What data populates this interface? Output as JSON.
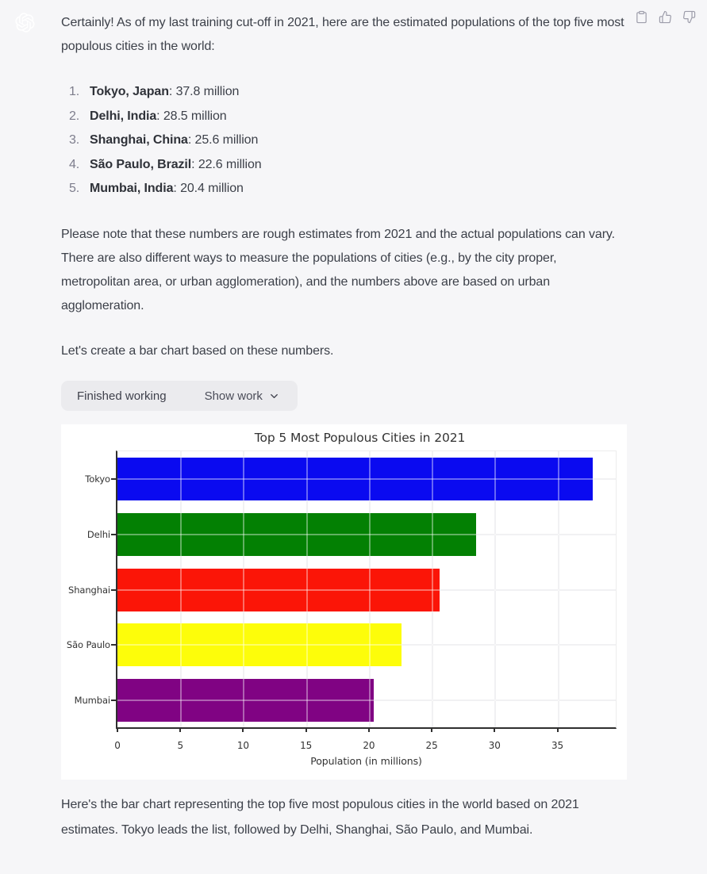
{
  "colors": {
    "page_bg": "#f6f6f8",
    "avatar_bg": "#ab68ff",
    "panel_bg": "#ffffff",
    "pill_bg": "#ebebee"
  },
  "avatar": {
    "icon": "openai-logo"
  },
  "action_icons": [
    "clipboard",
    "thumbs-up",
    "thumbs-down"
  ],
  "message": {
    "intro": "Certainly! As of my last training cut-off in 2021, here are the estimated populations of the top five most populous cities in the world:",
    "list": [
      {
        "num": "1.",
        "name": "Tokyo, Japan",
        "rest": ": 37.8 million"
      },
      {
        "num": "2.",
        "name": "Delhi, India",
        "rest": ": 28.5 million"
      },
      {
        "num": "3.",
        "name": "Shanghai, China",
        "rest": ": 25.6 million"
      },
      {
        "num": "4.",
        "name": "São Paulo, Brazil",
        "rest": ": 22.6 million"
      },
      {
        "num": "5.",
        "name": "Mumbai, India",
        "rest": ": 20.4 million"
      }
    ],
    "note": "Please note that these numbers are rough estimates from 2021 and the actual populations can vary. There are also different ways to measure the populations of cities (e.g., by the city proper, metropolitan area, or urban agglomeration), and the numbers above are based on urban agglomeration.",
    "cta": "Let's create a bar chart based on these numbers.",
    "outro": "Here's the bar chart representing the top five most populous cities in the world based on 2021 estimates. Tokyo leads the list, followed by Delhi, Shanghai, São Paulo, and Mumbai."
  },
  "work_bar": {
    "status": "Finished working",
    "toggle": "Show work",
    "icon": "chevron-down"
  },
  "chart_data": {
    "type": "bar",
    "orientation": "horizontal",
    "title": "Top 5 Most Populous Cities in 2021",
    "categories": [
      "Tokyo",
      "Delhi",
      "Shanghai",
      "São Paulo",
      "Mumbai"
    ],
    "values": [
      37.8,
      28.5,
      25.6,
      22.6,
      20.4
    ],
    "bar_colors": [
      "#0a0af0",
      "#038003",
      "#fb1507",
      "#fdfd0a",
      "#800383"
    ],
    "xlabel": "Population (in millions)",
    "xticks": [
      0,
      5,
      10,
      15,
      20,
      25,
      30,
      35
    ],
    "xlim": [
      0,
      39.7
    ],
    "grid": true,
    "legend": false
  }
}
